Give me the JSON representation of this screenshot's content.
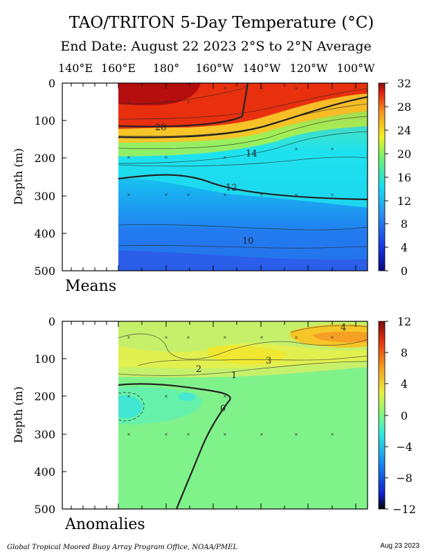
{
  "title": "TAO/TRITON 5-Day Temperature (°C)",
  "subtitle": "End Date: August 22 2023   2°S to 2°N Average",
  "footer_left": "Global Tropical Moored Buoy Array Program Office, NOAA/PMEL",
  "footer_right": "Aug 23 2023",
  "x_ticks": [
    "140°E",
    "160°E",
    "180°",
    "160°W",
    "140°W",
    "120°W",
    "100°W"
  ],
  "chart_data": [
    {
      "type": "heatmap",
      "panel_label": "Means",
      "ylabel": "Depth (m)",
      "ylim": [
        0,
        500
      ],
      "y_ticks": [
        "0",
        "100",
        "200",
        "300",
        "400",
        "500"
      ],
      "colorbar_ticks": [
        "32",
        "28",
        "24",
        "20",
        "16",
        "12",
        "8",
        "4",
        "0"
      ],
      "colorbar_range": [
        0,
        32
      ],
      "contour_labels": [
        "28",
        "14",
        "12",
        "10"
      ],
      "data_start_longitude": "160°E"
    },
    {
      "type": "heatmap",
      "panel_label": "Anomalies",
      "ylabel": "Depth (m)",
      "ylim": [
        0,
        500
      ],
      "y_ticks": [
        "0",
        "100",
        "200",
        "300",
        "400",
        "500"
      ],
      "colorbar_ticks": [
        "12",
        "8",
        "4",
        "0",
        "−4",
        "−8",
        "−12"
      ],
      "colorbar_range": [
        -12,
        12
      ],
      "contour_labels": [
        "4",
        "3",
        "2",
        "1",
        "0"
      ],
      "data_start_longitude": "160°E"
    }
  ]
}
